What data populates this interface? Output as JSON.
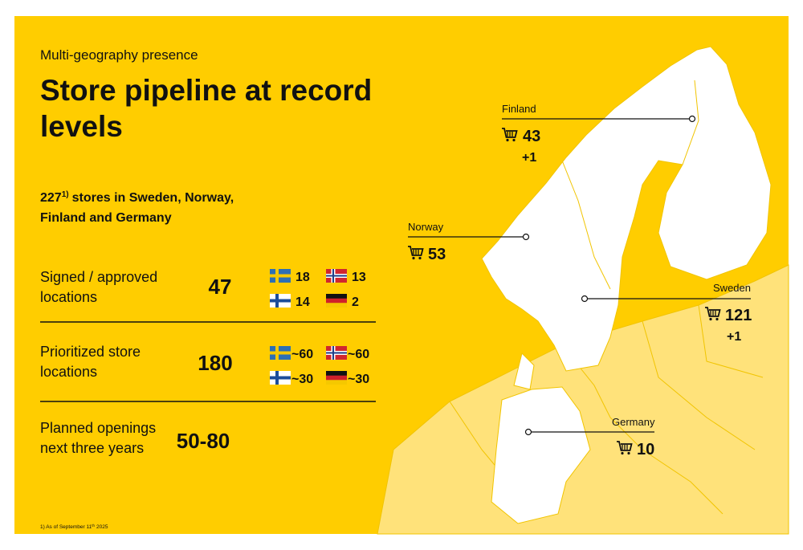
{
  "header": {
    "subtitle": "Multi-geography presence",
    "title_lines": [
      "Store pipeline at record",
      "levels"
    ]
  },
  "summary": {
    "count": "227",
    "footnote_mark": "1)",
    "text_lines": [
      "stores in Sweden, Norway,",
      "Finland and Germany"
    ]
  },
  "rows": [
    {
      "label_lines": [
        "Signed / approved",
        "locations"
      ],
      "value": "47",
      "flags": {
        "sweden": "18",
        "norway": "13",
        "finland": "14",
        "germany": "2"
      }
    },
    {
      "label_lines": [
        "Prioritized store",
        "locations"
      ],
      "value": "180",
      "flags": {
        "sweden": "~60",
        "norway": "~60",
        "finland": "~30",
        "germany": "~30"
      }
    },
    {
      "label_lines": [
        "Planned openings",
        "next three years"
      ],
      "value": "50-80"
    }
  ],
  "footnote": {
    "text": "1) As of September 11",
    "sup": "th",
    "rest": "2025"
  },
  "map": {
    "markers": [
      {
        "country": "Finland",
        "stores": "43",
        "change": "+1"
      },
      {
        "country": "Norway",
        "stores": "53"
      },
      {
        "country": "Sweden",
        "stores": "121",
        "change": "+1"
      },
      {
        "country": "Germany",
        "stores": "10"
      }
    ]
  }
}
